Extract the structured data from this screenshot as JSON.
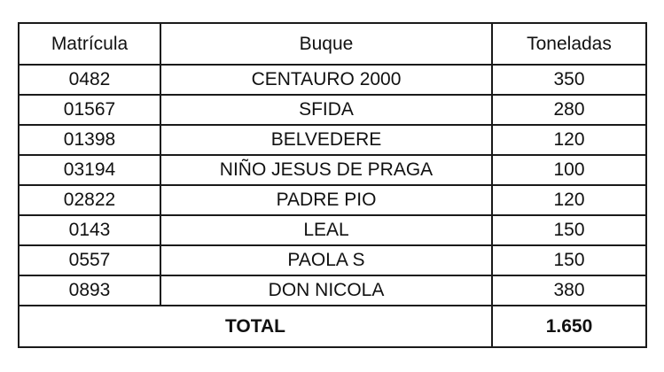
{
  "headers": {
    "matricula": "Matrícula",
    "buque": "Buque",
    "toneladas": "Toneladas"
  },
  "rows": [
    {
      "matricula": "0482",
      "buque": "CENTAURO 2000",
      "toneladas": "350"
    },
    {
      "matricula": "01567",
      "buque": "SFIDA",
      "toneladas": "280"
    },
    {
      "matricula": "01398",
      "buque": "BELVEDERE",
      "toneladas": "120"
    },
    {
      "matricula": "03194",
      "buque": "NIÑO JESUS DE PRAGA",
      "toneladas": "100"
    },
    {
      "matricula": "02822",
      "buque": "PADRE PIO",
      "toneladas": "120"
    },
    {
      "matricula": "0143",
      "buque": "LEAL",
      "toneladas": "150"
    },
    {
      "matricula": "0557",
      "buque": "PAOLA S",
      "toneladas": "150"
    },
    {
      "matricula": "0893",
      "buque": "DON NICOLA",
      "toneladas": "380"
    }
  ],
  "total": {
    "label": "TOTAL",
    "value": "1.650"
  }
}
